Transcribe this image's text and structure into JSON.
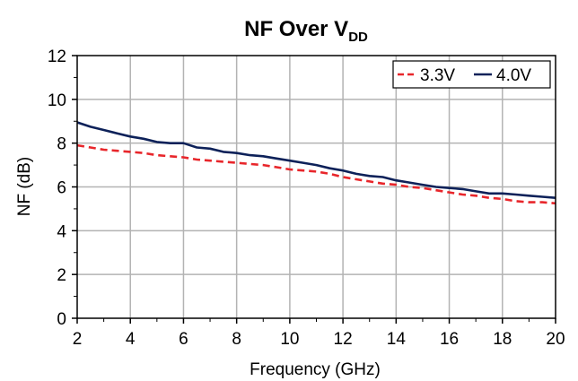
{
  "chart_data": {
    "type": "line",
    "title": "NF Over V",
    "title_subscript": "DD",
    "xlabel": "Frequency (GHz)",
    "ylabel": "NF (dB)",
    "xlim": [
      2,
      20
    ],
    "ylim": [
      0,
      12
    ],
    "xticks": [
      2,
      4,
      6,
      8,
      10,
      12,
      14,
      16,
      18,
      20
    ],
    "yticks": [
      0,
      2,
      4,
      6,
      8,
      10,
      12
    ],
    "xtick_labels": [
      "2",
      "4",
      "6",
      "8",
      "10",
      "12",
      "14",
      "16",
      "18",
      "20"
    ],
    "ytick_labels": [
      "0",
      "2",
      "4",
      "6",
      "8",
      "10",
      "12"
    ],
    "grid": true,
    "legend_position": "top-right",
    "series": [
      {
        "name": "3.3V",
        "color": "#e8262b",
        "dash": "dashed",
        "x": [
          2,
          2.5,
          3,
          3.5,
          4,
          4.5,
          5,
          5.5,
          6,
          6.5,
          7,
          7.5,
          8,
          8.5,
          9,
          9.5,
          10,
          10.5,
          11,
          11.5,
          12,
          12.5,
          13,
          13.5,
          14,
          14.5,
          15,
          15.5,
          16,
          16.5,
          17,
          17.5,
          18,
          18.5,
          19,
          19.5,
          20
        ],
        "values": [
          7.9,
          7.8,
          7.7,
          7.65,
          7.6,
          7.55,
          7.45,
          7.4,
          7.35,
          7.25,
          7.2,
          7.15,
          7.1,
          7.05,
          7.0,
          6.9,
          6.8,
          6.75,
          6.7,
          6.6,
          6.45,
          6.35,
          6.25,
          6.15,
          6.1,
          6.0,
          5.95,
          5.85,
          5.75,
          5.65,
          5.6,
          5.5,
          5.45,
          5.35,
          5.3,
          5.3,
          5.25
        ]
      },
      {
        "name": "4.0V",
        "color": "#0d2159",
        "dash": "solid",
        "x": [
          2,
          2.5,
          3,
          3.5,
          4,
          4.5,
          5,
          5.5,
          6,
          6.5,
          7,
          7.5,
          8,
          8.5,
          9,
          9.5,
          10,
          10.5,
          11,
          11.5,
          12,
          12.5,
          13,
          13.5,
          14,
          14.5,
          15,
          15.5,
          16,
          16.5,
          17,
          17.5,
          18,
          18.5,
          19,
          19.5,
          20
        ],
        "values": [
          8.95,
          8.75,
          8.6,
          8.45,
          8.3,
          8.2,
          8.05,
          8.0,
          8.0,
          7.8,
          7.75,
          7.6,
          7.55,
          7.45,
          7.4,
          7.3,
          7.2,
          7.1,
          7.0,
          6.85,
          6.75,
          6.6,
          6.5,
          6.45,
          6.3,
          6.2,
          6.1,
          6.0,
          5.95,
          5.9,
          5.8,
          5.7,
          5.7,
          5.65,
          5.6,
          5.55,
          5.5
        ]
      }
    ]
  }
}
